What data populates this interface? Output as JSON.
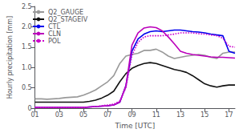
{
  "chart_data": {
    "type": "line",
    "xlabel": "Time [UTC]",
    "ylabel": "Hourly precipitation [mm]",
    "x": [
      1,
      1.5,
      2,
      2.5,
      3,
      3.5,
      4,
      4.5,
      5,
      5.5,
      6,
      6.5,
      7,
      7.5,
      8,
      8.5,
      9,
      9.5,
      10,
      10.5,
      11,
      11.5,
      12,
      12.5,
      13,
      13.5,
      14,
      14.5,
      15,
      15.5,
      16,
      16.5,
      17,
      17.5
    ],
    "xlim": [
      1,
      17.5
    ],
    "xticks": [
      {
        "value": 1,
        "label": "01"
      },
      {
        "value": 3,
        "label": "03"
      },
      {
        "value": 5,
        "label": "05"
      },
      {
        "value": 7,
        "label": "07"
      },
      {
        "value": 9,
        "label": "09"
      },
      {
        "value": 11,
        "label": "11"
      },
      {
        "value": 13,
        "label": "13"
      },
      {
        "value": 15,
        "label": "15"
      },
      {
        "value": 17,
        "label": "17"
      }
    ],
    "ylim": [
      0,
      2.5
    ],
    "yticks": [
      0,
      0.5,
      {
        "value": 1,
        "label": "1.0"
      },
      1.5,
      {
        "value": 2,
        "label": "2.0"
      },
      2.5
    ],
    "grid": false,
    "legend": "upper left",
    "series": [
      {
        "name": "Q2_GAUGE",
        "color": "#999999",
        "line_style": "solid",
        "values": [
          0.23,
          0.23,
          0.22,
          0.23,
          0.24,
          0.26,
          0.27,
          0.28,
          0.32,
          0.38,
          0.45,
          0.55,
          0.65,
          0.8,
          1.1,
          1.28,
          1.32,
          1.35,
          1.42,
          1.42,
          1.45,
          1.38,
          1.28,
          1.22,
          1.25,
          1.28,
          1.3,
          1.32,
          1.3,
          1.25,
          1.22,
          1.35,
          1.38,
          1.38
        ]
      },
      {
        "name": "Q2_STAGEIV",
        "color": "#111111",
        "line_style": "solid",
        "values": [
          0.15,
          0.15,
          0.15,
          0.15,
          0.15,
          0.15,
          0.15,
          0.15,
          0.15,
          0.17,
          0.2,
          0.25,
          0.32,
          0.42,
          0.65,
          0.85,
          0.98,
          1.05,
          1.1,
          1.12,
          1.1,
          1.05,
          1.0,
          0.95,
          0.92,
          0.88,
          0.8,
          0.7,
          0.6,
          0.55,
          0.52,
          0.55,
          0.57,
          0.57
        ]
      },
      {
        "name": "CTL",
        "color": "#0000ee",
        "line_style": "solid",
        "values": [
          0.02,
          0.02,
          0.02,
          0.02,
          0.02,
          0.02,
          0.02,
          0.02,
          0.02,
          0.03,
          0.04,
          0.05,
          0.06,
          0.08,
          0.15,
          0.55,
          1.4,
          1.7,
          1.82,
          1.88,
          1.9,
          1.88,
          1.9,
          1.92,
          1.92,
          1.9,
          1.88,
          1.87,
          1.85,
          1.82,
          1.8,
          1.78,
          1.4,
          1.35
        ]
      },
      {
        "name": "CLN",
        "color": "#bb00bb",
        "line_style": "solid",
        "values": [
          0.02,
          0.02,
          0.02,
          0.02,
          0.02,
          0.02,
          0.02,
          0.02,
          0.02,
          0.03,
          0.04,
          0.05,
          0.06,
          0.08,
          0.15,
          0.55,
          1.55,
          1.85,
          1.97,
          2.0,
          1.98,
          1.9,
          1.75,
          1.58,
          1.4,
          1.35,
          1.32,
          1.3,
          1.28,
          1.26,
          1.25,
          1.25,
          1.24,
          1.23
        ]
      },
      {
        "name": "POL",
        "color": "#cc00cc",
        "line_style": "dotted",
        "values": [
          0.02,
          0.02,
          0.02,
          0.02,
          0.02,
          0.02,
          0.02,
          0.02,
          0.02,
          0.03,
          0.04,
          0.06,
          0.08,
          0.1,
          0.18,
          0.5,
          1.3,
          1.62,
          1.75,
          1.78,
          1.78,
          1.78,
          1.8,
          1.82,
          1.85,
          1.85,
          1.85,
          1.83,
          1.82,
          1.8,
          1.78,
          1.72,
          1.52,
          1.5
        ]
      }
    ]
  }
}
